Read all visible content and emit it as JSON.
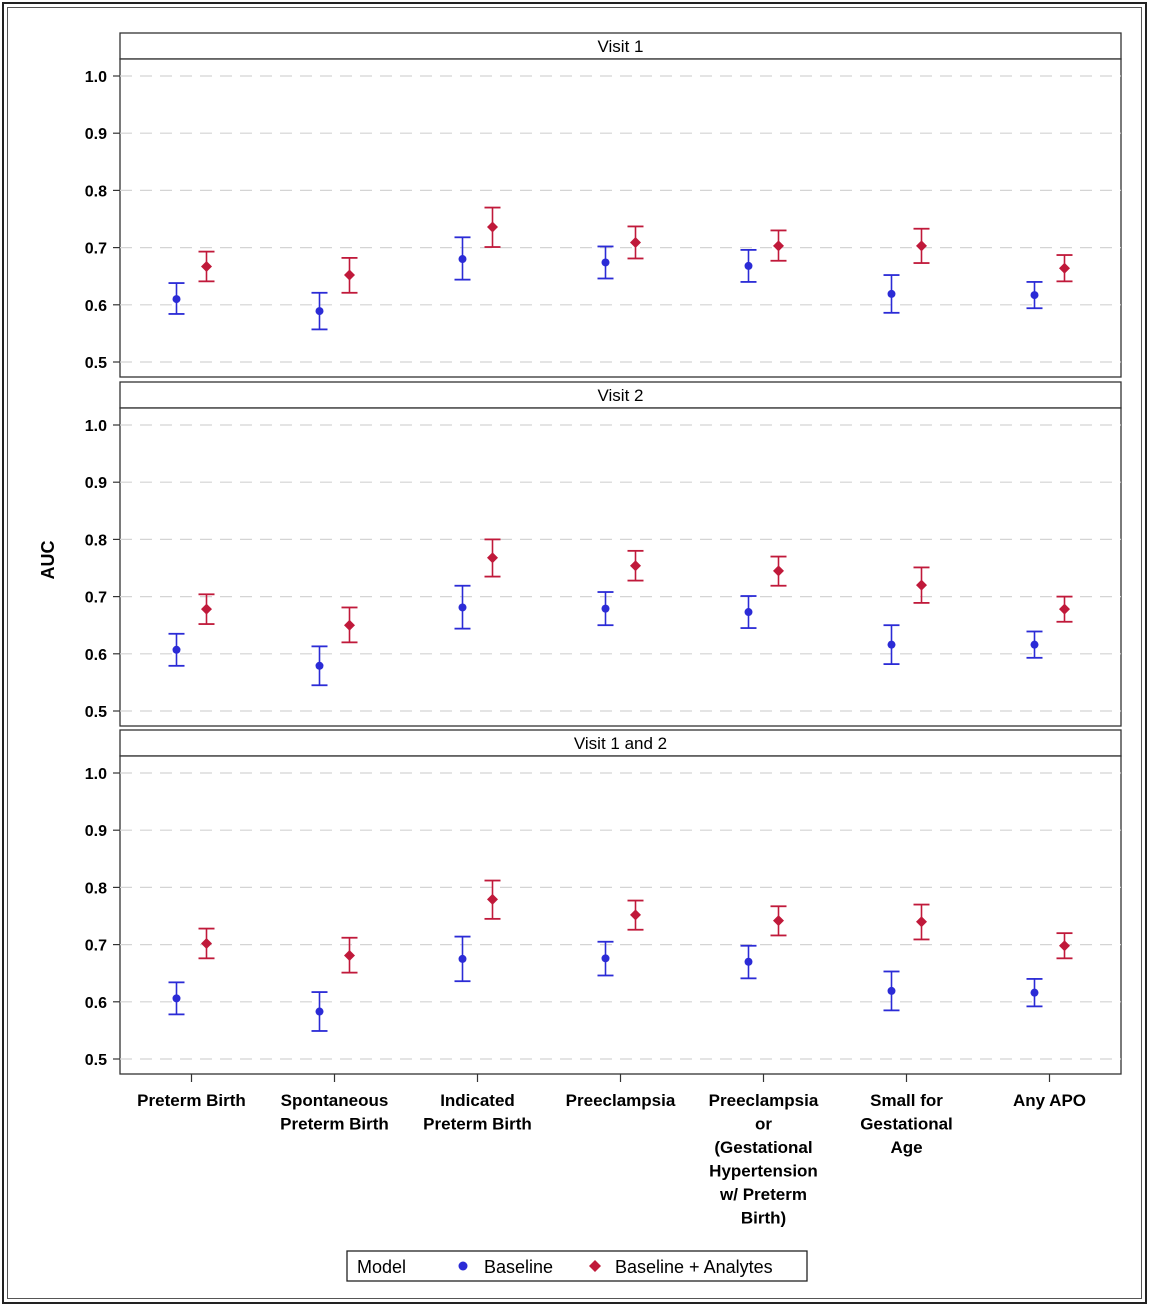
{
  "chart_data": {
    "type": "scatter",
    "ylabel": "AUC",
    "xlabel": "",
    "ylim": [
      0.5,
      1.0
    ],
    "yticks": [
      "0.5",
      "0.6",
      "0.7",
      "0.8",
      "0.9",
      "1.0"
    ],
    "grid": "horizontal dashed",
    "categories": [
      [
        "Preterm Birth"
      ],
      [
        "Spontaneous",
        "Preterm Birth"
      ],
      [
        "Indicated",
        "Preterm Birth"
      ],
      [
        "Preeclampsia"
      ],
      [
        "Preeclampsia",
        "or",
        "(Gestational",
        "Hypertension",
        "w/ Preterm",
        "Birth)"
      ],
      [
        "Small for",
        "Gestational",
        "Age"
      ],
      [
        "Any APO"
      ]
    ],
    "legend": {
      "title": "Model",
      "placement": "bottom-center",
      "entries": [
        {
          "label": "Baseline",
          "marker": "circle",
          "color": "#2b2bd6"
        },
        {
          "label": "Baseline + Analytes",
          "marker": "diamond",
          "color": "#c0193a"
        }
      ]
    },
    "panels": [
      {
        "title": "Visit 1",
        "series": [
          {
            "name": "Baseline",
            "values": [
              0.61,
              0.589,
              0.68,
              0.674,
              0.668,
              0.619,
              0.617
            ],
            "lower": [
              0.584,
              0.557,
              0.644,
              0.646,
              0.64,
              0.586,
              0.594
            ],
            "upper": [
              0.638,
              0.621,
              0.718,
              0.702,
              0.696,
              0.652,
              0.64
            ]
          },
          {
            "name": "Baseline + Analytes",
            "values": [
              0.667,
              0.652,
              0.736,
              0.709,
              0.703,
              0.703,
              0.664
            ],
            "lower": [
              0.641,
              0.621,
              0.701,
              0.681,
              0.677,
              0.673,
              0.641
            ],
            "upper": [
              0.693,
              0.682,
              0.77,
              0.737,
              0.73,
              0.733,
              0.687
            ]
          }
        ]
      },
      {
        "title": "Visit 2",
        "series": [
          {
            "name": "Baseline",
            "values": [
              0.607,
              0.579,
              0.681,
              0.679,
              0.673,
              0.616,
              0.616
            ],
            "lower": [
              0.579,
              0.545,
              0.644,
              0.65,
              0.645,
              0.582,
              0.593
            ],
            "upper": [
              0.635,
              0.613,
              0.719,
              0.708,
              0.701,
              0.65,
              0.639
            ]
          },
          {
            "name": "Baseline + Analytes",
            "values": [
              0.678,
              0.65,
              0.768,
              0.754,
              0.745,
              0.72,
              0.678
            ],
            "lower": [
              0.652,
              0.62,
              0.735,
              0.728,
              0.719,
              0.689,
              0.656
            ],
            "upper": [
              0.704,
              0.681,
              0.8,
              0.78,
              0.77,
              0.751,
              0.7
            ]
          }
        ]
      },
      {
        "title": "Visit 1 and 2",
        "series": [
          {
            "name": "Baseline",
            "values": [
              0.606,
              0.583,
              0.675,
              0.676,
              0.67,
              0.619,
              0.616
            ],
            "lower": [
              0.578,
              0.549,
              0.636,
              0.646,
              0.641,
              0.585,
              0.592
            ],
            "upper": [
              0.634,
              0.617,
              0.714,
              0.705,
              0.698,
              0.653,
              0.64
            ]
          },
          {
            "name": "Baseline + Analytes",
            "values": [
              0.702,
              0.681,
              0.779,
              0.752,
              0.742,
              0.74,
              0.698
            ],
            "lower": [
              0.676,
              0.651,
              0.745,
              0.726,
              0.716,
              0.709,
              0.676
            ],
            "upper": [
              0.728,
              0.712,
              0.812,
              0.777,
              0.767,
              0.77,
              0.72
            ]
          }
        ]
      }
    ]
  }
}
